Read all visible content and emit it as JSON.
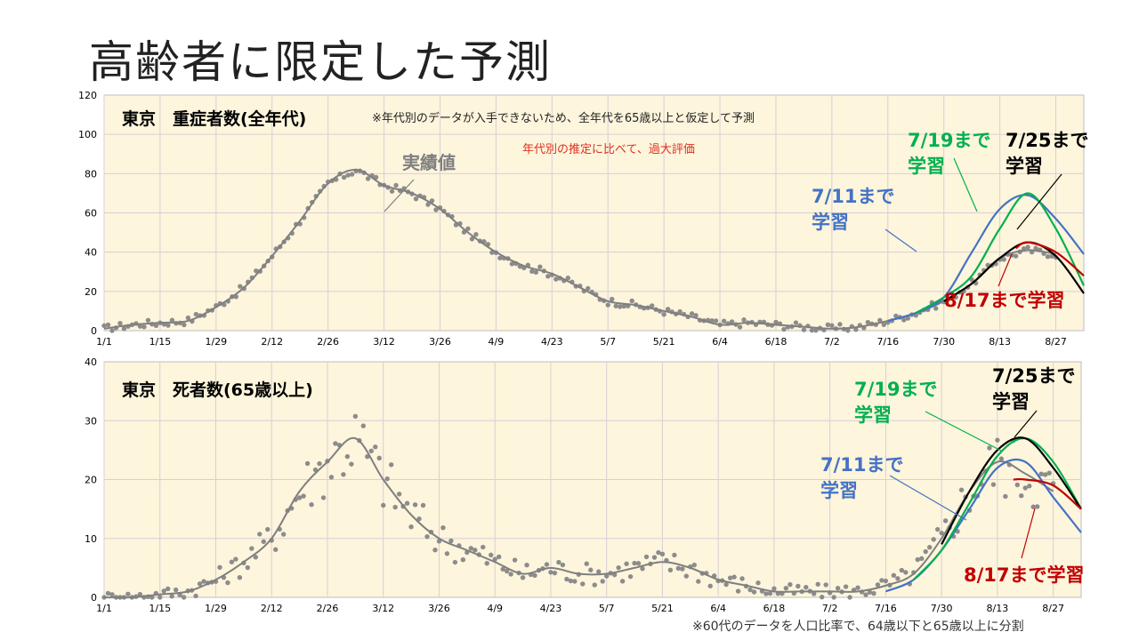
{
  "slide": {
    "title": "高齢者に限定した予測",
    "footnote": "※60代のデータを人口比率で、64歳以下と65歳以上に分割"
  },
  "colors": {
    "plot_bg": "#fdf5dc",
    "actual": "#7f7f7f",
    "until_0711": "#4472c4",
    "until_0719": "#00b050",
    "until_0725": "#000000",
    "until_0817": "#c00000",
    "annotation_red": "#e03020"
  },
  "chart_data": [
    {
      "type": "line",
      "title": "東京　重症者数(全年代)",
      "annotations": [
        "※年代別のデータが入手できないため、全年代を65歳以上と仮定して予測",
        "年代別の推定に比べて、過大評価"
      ],
      "xlabel": "",
      "ylabel": "",
      "x_ticks": [
        "1/1",
        "1/15",
        "1/29",
        "2/12",
        "2/26",
        "3/12",
        "3/26",
        "4/9",
        "4/23",
        "5/7",
        "5/21",
        "6/4",
        "6/18",
        "7/2",
        "7/16",
        "7/30",
        "8/13",
        "8/27"
      ],
      "ylim": [
        0,
        120
      ],
      "y_ticks": [
        0,
        20,
        40,
        60,
        80,
        100,
        120
      ],
      "grid": true,
      "labels": {
        "actual": "実績値",
        "until_0711": [
          "7/11まで",
          "学習"
        ],
        "until_0719": [
          "7/19まで",
          "学習"
        ],
        "until_0725": [
          "7/25まで",
          "学習"
        ],
        "until_0817": "8/17まで学習"
      },
      "series": [
        {
          "key": "actual",
          "x": [
            0,
            7,
            14,
            21,
            28,
            35,
            42,
            49,
            56,
            63,
            70,
            77,
            84,
            91,
            98,
            105,
            112,
            119,
            126,
            133,
            140,
            147,
            154,
            161,
            168,
            175,
            182,
            189,
            196,
            203,
            210,
            217,
            224,
            231,
            238
          ],
          "y": [
            1,
            3,
            4,
            5,
            12,
            22,
            38,
            56,
            75,
            82,
            74,
            70,
            62,
            50,
            40,
            33,
            29,
            22,
            15,
            13,
            10,
            7,
            3,
            4,
            3,
            2,
            1,
            2,
            5,
            9,
            15,
            24,
            37,
            41,
            39
          ]
        },
        {
          "key": "until_0711",
          "x": [
            196,
            203,
            210,
            217,
            224,
            231,
            238,
            245
          ],
          "y": [
            5,
            9,
            17,
            40,
            62,
            69,
            57,
            39
          ]
        },
        {
          "key": "until_0719",
          "x": [
            203,
            210,
            217,
            224,
            231,
            238,
            245
          ],
          "y": [
            9,
            17,
            28,
            52,
            70,
            52,
            23
          ]
        },
        {
          "key": "until_0725",
          "x": [
            210,
            217,
            224,
            231,
            238,
            245
          ],
          "y": [
            15,
            24,
            37,
            45,
            38,
            19
          ]
        },
        {
          "key": "until_0817",
          "x": [
            228,
            231,
            238,
            245
          ],
          "y": [
            42,
            45,
            40,
            28
          ]
        }
      ]
    },
    {
      "type": "line",
      "title": "東京　死者数(65歳以上)",
      "xlabel": "",
      "ylabel": "",
      "x_ticks": [
        "1/1",
        "1/15",
        "1/29",
        "2/12",
        "2/26",
        "3/12",
        "3/26",
        "4/9",
        "4/23",
        "5/7",
        "5/21",
        "6/4",
        "6/18",
        "7/2",
        "7/16",
        "7/30",
        "8/13",
        "8/27"
      ],
      "ylim": [
        0,
        40
      ],
      "y_ticks": [
        0,
        10,
        20,
        30,
        40
      ],
      "grid": true,
      "labels": {
        "until_0711": [
          "7/11まで",
          "学習"
        ],
        "until_0719": [
          "7/19まで",
          "学習"
        ],
        "until_0725": [
          "7/25まで",
          "学習"
        ],
        "until_0817": "8/17まで学習"
      },
      "series": [
        {
          "key": "actual",
          "x": [
            0,
            7,
            14,
            21,
            28,
            35,
            42,
            49,
            56,
            63,
            70,
            77,
            84,
            91,
            98,
            105,
            112,
            119,
            126,
            133,
            140,
            147,
            154,
            161,
            168,
            175,
            182,
            189,
            196,
            203,
            210,
            217,
            224,
            231,
            238
          ],
          "y": [
            0,
            0,
            0.5,
            1,
            3,
            6,
            10,
            18,
            23,
            27,
            20,
            14,
            10,
            8,
            6,
            4,
            5,
            4,
            4,
            5,
            6,
            5,
            3,
            2,
            1,
            1,
            1,
            1,
            2,
            4,
            10,
            18,
            23,
            21,
            18
          ]
        },
        {
          "key": "until_0711",
          "x": [
            196,
            203,
            210,
            217,
            224,
            231,
            238,
            245
          ],
          "y": [
            1,
            3,
            8,
            15,
            22,
            23,
            17,
            11
          ]
        },
        {
          "key": "until_0719",
          "x": [
            203,
            210,
            217,
            224,
            231,
            238,
            245
          ],
          "y": [
            3,
            8,
            16,
            24,
            27,
            23,
            15
          ]
        },
        {
          "key": "until_0725",
          "x": [
            210,
            217,
            224,
            231,
            238,
            245
          ],
          "y": [
            9,
            18,
            25,
            27,
            22,
            15
          ]
        },
        {
          "key": "until_0817",
          "x": [
            228,
            231,
            238,
            245
          ],
          "y": [
            20,
            20,
            19,
            15
          ]
        }
      ]
    }
  ]
}
